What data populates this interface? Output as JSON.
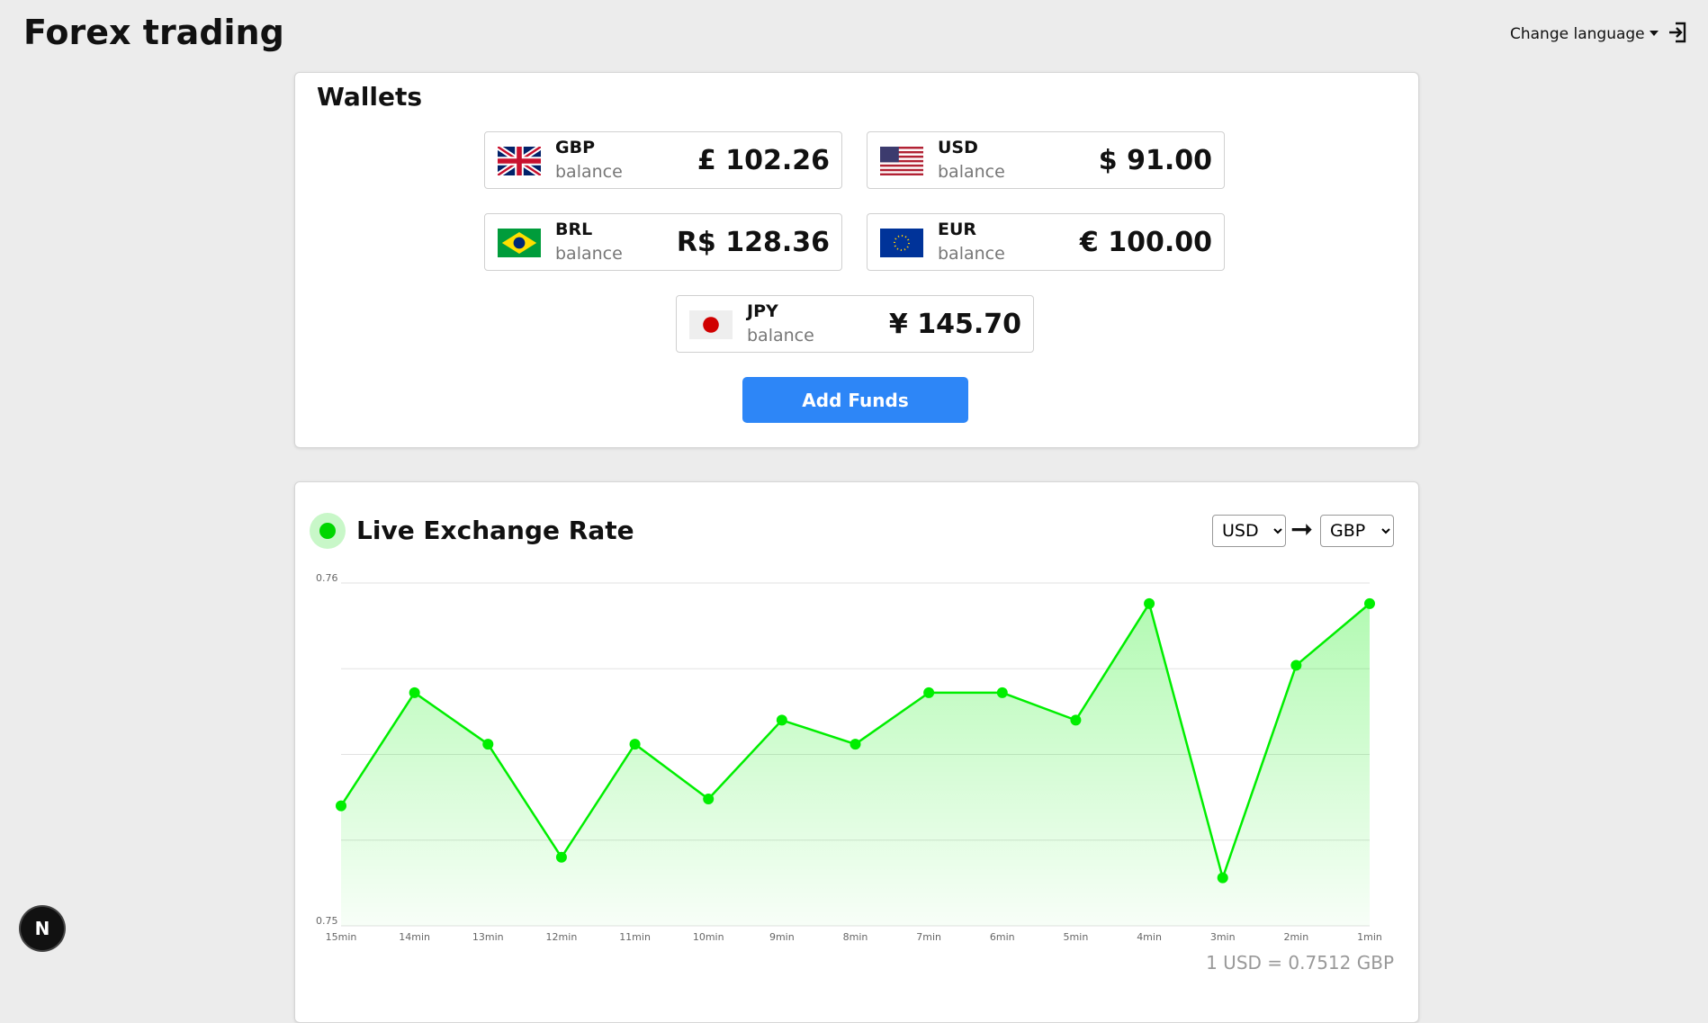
{
  "header": {
    "title": "Forex trading",
    "language_menu": "Change language"
  },
  "wallets": {
    "title": "Wallets",
    "items": [
      {
        "currency": "GBP",
        "label": "balance",
        "amount": "£ 102.26"
      },
      {
        "currency": "USD",
        "label": "balance",
        "amount": "$ 91.00"
      },
      {
        "currency": "BRL",
        "label": "balance",
        "amount": "R$ 128.36"
      },
      {
        "currency": "EUR",
        "label": "balance",
        "amount": "€ 100.00"
      },
      {
        "currency": "JPY",
        "label": "balance",
        "amount": "¥ 145.70"
      }
    ],
    "button": "Add Funds"
  },
  "exchange": {
    "title": "Live Exchange Rate",
    "from": "USD",
    "to": "GBP",
    "footer": "1 USD = 0.7512 GBP"
  },
  "dev_badge": "N",
  "chart_data": {
    "type": "line",
    "categories": [
      "15min",
      "14min",
      "13min",
      "12min",
      "11min",
      "10min",
      "9min",
      "8min",
      "7min",
      "6min",
      "5min",
      "4min",
      "3min",
      "2min",
      "1min"
    ],
    "values": [
      0.7535,
      0.7568,
      0.7553,
      0.752,
      0.7553,
      0.7537,
      0.756,
      0.7553,
      0.7568,
      0.7568,
      0.756,
      0.7594,
      0.7514,
      0.7576,
      0.7594
    ],
    "color": "#00ee00",
    "ylim": [
      0.75,
      0.76
    ],
    "yticks": [
      0.75,
      0.76
    ],
    "gridlines": [
      0.7525,
      0.755,
      0.7575
    ],
    "grid": true,
    "area": true
  }
}
